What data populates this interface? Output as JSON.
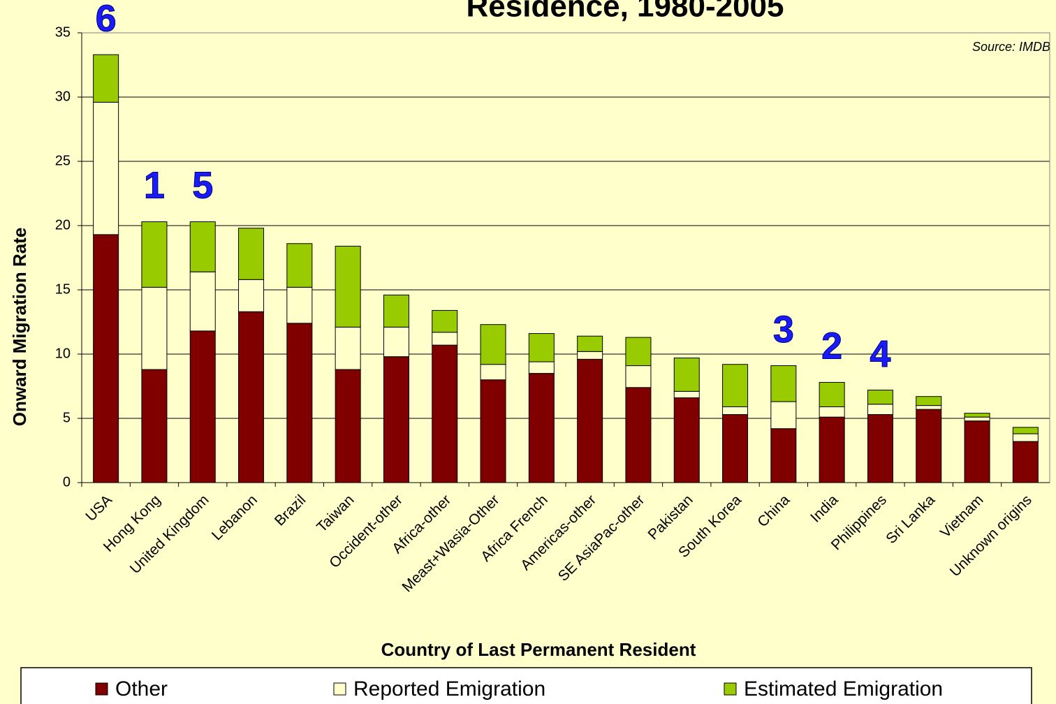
{
  "chart_data": {
    "type": "stacked_bar",
    "title": "Residence, 1980-2005",
    "source": "Source: IMDB",
    "x_label": "Country of Last Permanent Resident",
    "y_label": "Onward Migration Rate",
    "categories": [
      "USA",
      "Hong Kong",
      "United Kingdom",
      "Lebanon",
      "Brazil",
      "Taiwan",
      "Occident-other",
      "Africa-other",
      "Meast+Wasia-Other",
      "Africa French",
      "Americas-other",
      "SE AsiaPac-other",
      "Pakistan",
      "South Korea",
      "China",
      "India",
      "Philippines",
      "Sri Lanka",
      "Vietnam",
      "Unknown origins"
    ],
    "series": [
      {
        "name": "Other",
        "color": "#800000",
        "values": [
          19.3,
          8.8,
          11.8,
          13.3,
          12.4,
          8.8,
          9.8,
          10.7,
          8.0,
          8.5,
          9.6,
          7.4,
          6.6,
          5.3,
          4.2,
          5.1,
          5.3,
          5.7,
          4.8,
          3.2
        ]
      },
      {
        "name": "Reported Emigration",
        "color": "#ffffcc",
        "values": [
          10.3,
          6.4,
          4.6,
          2.5,
          2.8,
          3.3,
          2.3,
          1.0,
          1.2,
          0.9,
          0.6,
          1.7,
          0.5,
          0.6,
          2.1,
          0.8,
          0.8,
          0.3,
          0.3,
          0.6
        ]
      },
      {
        "name": "Estimated Emigration",
        "color": "#99cc00",
        "values": [
          3.7,
          5.1,
          3.9,
          4.0,
          3.4,
          6.3,
          2.5,
          1.7,
          3.1,
          2.2,
          1.2,
          2.2,
          2.6,
          3.3,
          2.8,
          1.9,
          1.1,
          0.7,
          0.3,
          0.5
        ]
      }
    ],
    "annotations": [
      {
        "text": "6",
        "category": "USA"
      },
      {
        "text": "1",
        "category": "Hong Kong"
      },
      {
        "text": "5",
        "category": "United Kingdom"
      },
      {
        "text": "3",
        "category": "China"
      },
      {
        "text": "2",
        "category": "India"
      },
      {
        "text": "4",
        "category": "Philippines"
      }
    ],
    "ylim": [
      0,
      35
    ],
    "yticks": [
      0,
      5,
      10,
      15,
      20,
      25,
      30,
      35
    ],
    "grid": true,
    "legend": "bottom"
  }
}
